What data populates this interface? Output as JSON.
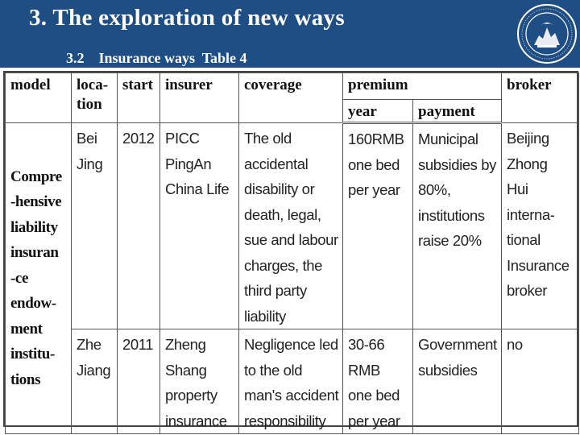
{
  "header": {
    "title": "3.  The exploration of new ways",
    "subtitle": "3.2    Insurance ways  Table 4",
    "logo_icon": "university-seal-icon",
    "background_color": "#1f4e84"
  },
  "table": {
    "columns": {
      "model": "model",
      "location": "loca-\ntion",
      "start": "start",
      "insurer": "insurer",
      "coverage": "coverage",
      "premium": "premium",
      "year": "year",
      "payment": "payment",
      "broker": "broker"
    },
    "model_lines": [
      "Compre",
      "-hensive",
      "liability",
      "insuran",
      "-ce",
      "endow-",
      "ment",
      "institu-",
      "tions"
    ],
    "rows": [
      {
        "location": [
          "Bei",
          "Jing"
        ],
        "start": "2012",
        "insurer": [
          "PICC",
          "PingAn",
          "China Life"
        ],
        "coverage": [
          "The old",
          "accidental",
          "disability or",
          "death, legal,",
          "sue and labour",
          "charges, the",
          "third party",
          "liability"
        ],
        "year": [
          "160RMB",
          "one bed",
          "per year"
        ],
        "payment": [
          "Municipal",
          "subsidies by",
          "80%,",
          "institutions",
          "raise 20%"
        ],
        "broker": [
          "Beijing",
          "Zhong",
          "Hui",
          "interna-",
          "tional",
          "Insurance",
          "broker"
        ]
      },
      {
        "location": [
          "Zhe",
          "Jiang"
        ],
        "start": "2011",
        "insurer": [
          "Zheng",
          "Shang",
          "property",
          "insurance"
        ],
        "coverage": [
          "Negligence led",
          "to the old",
          "man's accident",
          "responsibility"
        ],
        "year": [
          "30-66",
          "RMB",
          "one bed",
          "per year"
        ],
        "payment": [
          "Government",
          "subsidies"
        ],
        "broker": [
          "no"
        ]
      }
    ]
  }
}
